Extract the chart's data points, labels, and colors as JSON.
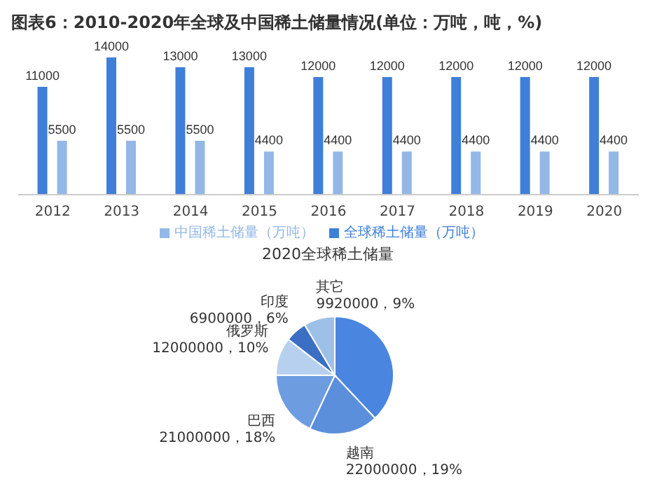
{
  "chart_data": [
    {
      "type": "bar",
      "title": "图表6：2010-2020年全球及中国稀土储量情况(单位：万吨，吨，%)",
      "categories": [
        "2012",
        "2013",
        "2014",
        "2015",
        "2016",
        "2017",
        "2018",
        "2019",
        "2020"
      ],
      "series": [
        {
          "name": "全球稀土储量（万吨）",
          "color": "#3f7fd9",
          "values": [
            11000,
            14000,
            13000,
            13000,
            12000,
            12000,
            12000,
            12000,
            12000
          ]
        },
        {
          "name": "中国稀土储量（万吨）",
          "color": "#93b8e6",
          "values": [
            5500,
            5500,
            5500,
            4400,
            4400,
            4400,
            4400,
            4400,
            4400
          ]
        }
      ],
      "data_labels": true,
      "legend": "bottom",
      "tick_labels": "x"
    },
    {
      "type": "pie",
      "title": "2020全球稀土储量",
      "categories": [
        null,
        "越南",
        "巴西",
        "俄罗斯",
        "印度",
        "其它"
      ],
      "values": [
        44000000,
        22000000,
        21000000,
        12000000,
        6900000,
        9920000
      ],
      "value_labels": [
        null,
        "22000000，19%",
        "21000000，18%",
        "12000000，10%",
        "6900000，6%",
        "9920000，9%"
      ],
      "colors": [
        "#4a86e0",
        "#5b8fdc",
        "#6d9de0",
        "#b7d0f0",
        "#3a6fc4",
        "#9dc0e8"
      ]
    }
  ]
}
